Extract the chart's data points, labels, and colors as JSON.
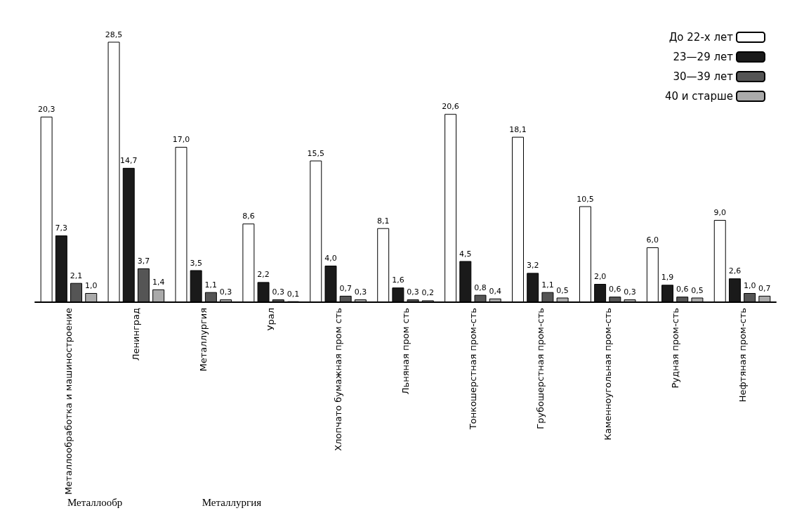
{
  "chart_data": {
    "type": "bar",
    "categories": [
      "Металлообработка и машиностроение",
      "Ленинград",
      "Металлургия",
      "Урал",
      "Хлопчато бумажная пром сть",
      "Льняная пром сть",
      "Тонкошерстная пром-сть",
      "Грубошерстная пром-сть",
      "Каменноугольная пром-сть",
      "Рудная пром-сть",
      "Нефтяная пром-сть"
    ],
    "series": [
      {
        "name": "До 22-х лет",
        "color": "#ffffff",
        "values": [
          20.3,
          28.5,
          17.0,
          8.6,
          15.5,
          8.1,
          20.6,
          18.1,
          10.5,
          6.0,
          9.0
        ],
        "value_labels": [
          "20,3",
          "28,5",
          "17,0",
          "8,6",
          "15,5",
          "8,1",
          "20,6",
          "18,1",
          "10,5",
          "6,0",
          "9,0"
        ]
      },
      {
        "name": "23—29 лет",
        "color": "#1a1a1a",
        "values": [
          7.3,
          14.7,
          3.5,
          2.2,
          4.0,
          1.6,
          4.5,
          3.2,
          2.0,
          1.9,
          2.6
        ],
        "value_labels": [
          "7,3",
          "14,7",
          "3,5",
          "2,2",
          "4,0",
          "1,6",
          "4,5",
          "3,2",
          "2,0",
          "1,9",
          "2,6"
        ]
      },
      {
        "name": "30—39 лет",
        "color": "#555555",
        "values": [
          2.1,
          3.7,
          1.1,
          0.3,
          0.7,
          0.3,
          0.8,
          1.1,
          0.6,
          0.6,
          1.0
        ],
        "value_labels": [
          "2,1",
          "3,7",
          "1,1",
          "0,3",
          "0,7",
          "0,3",
          "0,8",
          "1,1",
          "0,6",
          "0,6",
          "1,0"
        ]
      },
      {
        "name": "40 и старше",
        "color": "#aaaaaa",
        "values": [
          1.0,
          1.4,
          0.3,
          0.1,
          0.3,
          0.2,
          0.4,
          0.5,
          0.3,
          0.5,
          0.7
        ],
        "value_labels": [
          "1,0",
          "1,4",
          "0,3",
          "0,1",
          "0,3",
          "0,2",
          "0,4",
          "0,5",
          "0,3",
          "0,5",
          "0,7"
        ]
      }
    ],
    "annotations": [
      "Металлообр",
      "Металлургия"
    ],
    "legend": "top right"
  }
}
